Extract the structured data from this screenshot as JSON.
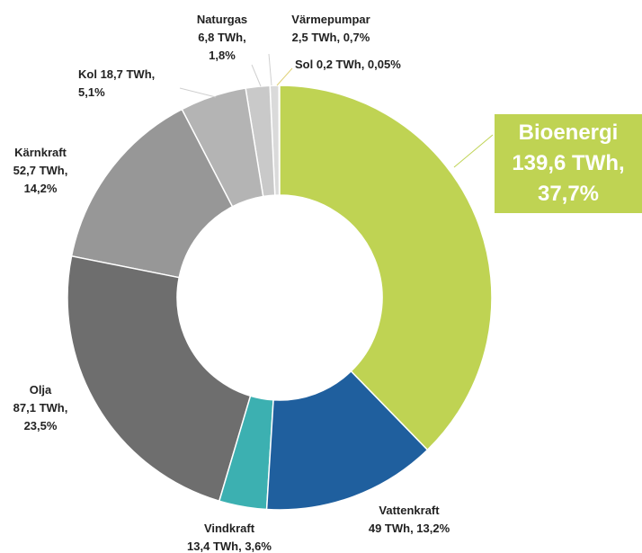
{
  "chart_data": {
    "type": "donut",
    "categories": [
      "Bioenergi",
      "Vattenkraft",
      "Vindkraft",
      "Olja",
      "Kärnkraft",
      "Kol",
      "Naturgas",
      "Värmepumpar",
      "Sol"
    ],
    "values": [
      139.6,
      49,
      13.4,
      87.1,
      52.7,
      18.7,
      6.8,
      2.5,
      0.2
    ],
    "value_labels": [
      "139,6 TWh, 37,7%",
      "49 TWh, 13,2%",
      "13,4 TWh, 3,6%",
      "87,1 TWh, 23,5%",
      "52,7 TWh, 14,2%",
      "18,7 TWh, 5,1%",
      "6,8 TWh, 1,8%",
      "2,5 TWh, 0,7%",
      "0,2 TWh, 0,05%"
    ],
    "colors": [
      "#bfd353",
      "#1f5f9e",
      "#3cb0b1",
      "#6e6e6e",
      "#979797",
      "#b4b4b4",
      "#c9c9c9",
      "#dadada",
      "#e8e8c8"
    ]
  }
}
